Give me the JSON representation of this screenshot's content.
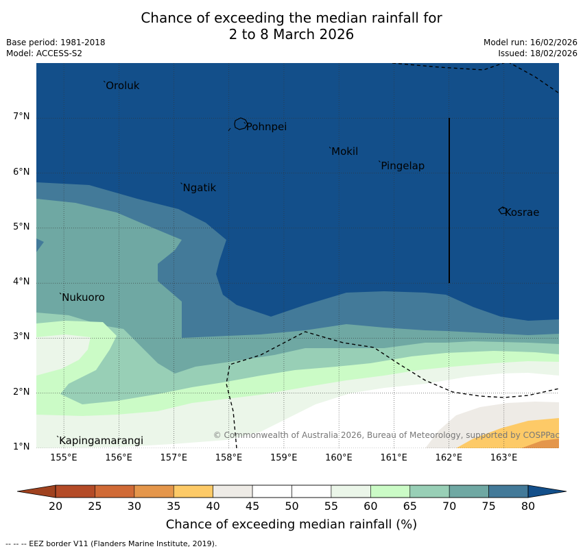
{
  "title": {
    "line1": "Chance of exceeding the median rainfall for",
    "line2": "2 to 8 March 2026"
  },
  "meta": {
    "base_period": "Base period: 1981-2018",
    "model": "Model: ACCESS-S2",
    "model_run": "Model run: 16/02/2026",
    "issued": "Issued: 18/02/2026"
  },
  "map": {
    "extent": {
      "lon_min": 154.5,
      "lon_max": 164.0,
      "lat_min": 1.0,
      "lat_max": 8.0
    },
    "lat_ticks": [
      "1°N",
      "2°N",
      "3°N",
      "4°N",
      "5°N",
      "6°N",
      "7°N"
    ],
    "lon_ticks": [
      "155°E",
      "156°E",
      "157°E",
      "158°E",
      "159°E",
      "160°E",
      "161°E",
      "162°E",
      "163°E"
    ],
    "places": [
      {
        "name": "Oroluk",
        "lon": 155.75,
        "lat": 7.6
      },
      {
        "name": "Pohnpei",
        "lon": 158.3,
        "lat": 6.85
      },
      {
        "name": "Mokil",
        "lon": 159.85,
        "lat": 6.4
      },
      {
        "name": "Pingelap",
        "lon": 160.75,
        "lat": 6.15
      },
      {
        "name": "Ngatik",
        "lon": 157.15,
        "lat": 5.75
      },
      {
        "name": "Kosrae",
        "lon": 163.0,
        "lat": 5.3
      },
      {
        "name": "Nukuoro",
        "lon": 154.95,
        "lat": 3.75
      },
      {
        "name": "Kapingamarangi",
        "lon": 154.9,
        "lat": 1.15
      }
    ],
    "copyright": "© Commonwealth of Australia 2026, Bureau of Meteorology, supported by COSPPac"
  },
  "colorbar": {
    "ticks": [
      "20",
      "25",
      "30",
      "35",
      "40",
      "45",
      "50",
      "55",
      "60",
      "65",
      "70",
      "75",
      "80"
    ],
    "colors": [
      "#b44b27",
      "#d06a36",
      "#e4964b",
      "#fdca67",
      "#eeebe6",
      "#ffffff",
      "#ffffff",
      "#ebf6e9",
      "#cbfbc6",
      "#98cfb6",
      "#6fa8a3",
      "#437a99"
    ],
    "low_color": "#a0421f",
    "high_color": "#134f8a",
    "title": "Chance of exceeding median rainfall (%)"
  },
  "footer": "--  --  -- EEZ border V11 (Flanders Marine Institute, 2019)."
}
